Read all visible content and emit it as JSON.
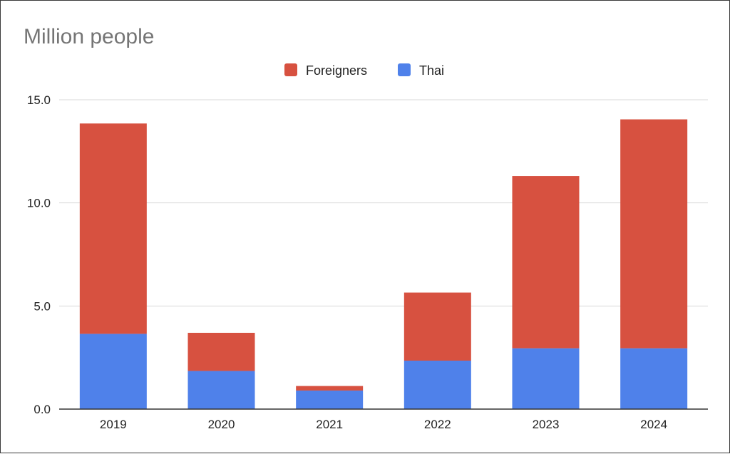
{
  "chart_data": {
    "type": "bar",
    "stacked": true,
    "title": "Million people",
    "categories": [
      "2019",
      "2020",
      "2021",
      "2022",
      "2023",
      "2024"
    ],
    "series": [
      {
        "name": "Thai",
        "color": "#4f81ea",
        "values": [
          3.65,
          1.85,
          0.9,
          2.35,
          2.95,
          2.95
        ]
      },
      {
        "name": "Foreigners",
        "color": "#d75140",
        "values": [
          10.2,
          1.85,
          0.22,
          3.3,
          8.35,
          11.1
        ]
      }
    ],
    "legend": [
      "Foreigners",
      "Thai"
    ],
    "legend_position": "top-center",
    "ylim": [
      0,
      15
    ],
    "yticks": [
      "0.0",
      "5.0",
      "10.0",
      "15.0"
    ],
    "ytick_values": [
      0,
      5,
      10,
      15
    ],
    "grid": true
  }
}
